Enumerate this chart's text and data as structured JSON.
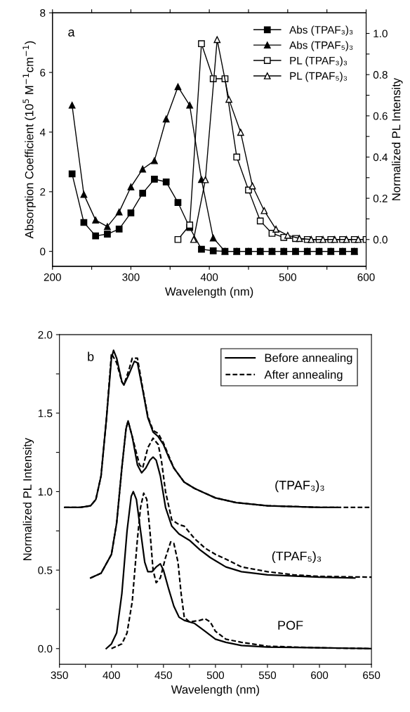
{
  "chart_data": [
    {
      "type": "line",
      "xlabel": "Wavelength (nm)",
      "ylabel": "Absorption Coefficient (10$^{5}$ M$^{−1}$cm$^{−1}$)",
      "y2label": "Normalized PL Intensity",
      "annotations": [
        "a"
      ],
      "xlim": [
        200,
        600
      ],
      "xticks": [
        200,
        {
          "value": 250,
          "label": null
        },
        300,
        {
          "value": 350,
          "label": null
        },
        400,
        {
          "value": 450,
          "label": null
        },
        500,
        {
          "value": 550,
          "label": null
        },
        600
      ],
      "ylim": [
        -0.5,
        8
      ],
      "yticks": [
        0,
        2,
        4,
        6,
        8
      ],
      "y2lim": [
        -0.13,
        1.1
      ],
      "y2ticks": [
        {
          "value": 0.0,
          "label": "0.0"
        },
        {
          "value": 0.1,
          "label": null
        },
        {
          "value": 0.2,
          "label": "0.2"
        },
        {
          "value": 0.3,
          "label": null
        },
        {
          "value": 0.4,
          "label": "0.4"
        },
        {
          "value": 0.5,
          "label": null
        },
        {
          "value": 0.6,
          "label": "0.6"
        },
        {
          "value": 0.7,
          "label": null
        },
        {
          "value": 0.8,
          "label": "0.8"
        },
        {
          "value": 0.9,
          "label": null
        },
        {
          "value": 1.0,
          "label": "1.0"
        }
      ],
      "legend": "top right",
      "grid": false,
      "line_style": "solid",
      "series": [
        {
          "name": "Abs (TPAF₃)₃",
          "color": "#000000",
          "marker": "square",
          "x": [
            225,
            240,
            255,
            270,
            285,
            300,
            315,
            330,
            345,
            360,
            375,
            390,
            405,
            420,
            435,
            450,
            465,
            480,
            495,
            510,
            525,
            540,
            555,
            570,
            585
          ],
          "values": [
            2.6,
            0.97,
            0.52,
            0.58,
            0.75,
            1.29,
            1.95,
            2.42,
            2.33,
            1.64,
            0.8,
            0.07,
            0.02,
            0,
            0,
            0,
            0,
            0,
            0,
            0,
            0,
            0,
            0,
            0,
            0
          ]
        },
        {
          "name": "Abs (TPAF₅)₃",
          "color": "#000000",
          "marker": "triangle",
          "x": [
            225,
            240,
            255,
            270,
            285,
            300,
            315,
            330,
            345,
            360,
            375,
            390,
            405,
            420,
            435,
            450,
            465,
            480,
            495,
            510,
            525,
            540,
            555,
            570,
            585
          ],
          "values": [
            4.9,
            1.91,
            1.05,
            0.83,
            1.32,
            2.16,
            2.76,
            3.04,
            4.44,
            5.52,
            4.9,
            2.41,
            0.45,
            0,
            0,
            0,
            0,
            0,
            0,
            0,
            0,
            0,
            0,
            0,
            0
          ]
        },
        {
          "name": "PL (TPAF₃)₃",
          "color": "#000000",
          "marker": "square",
          "axis": "y2",
          "x": [
            360,
            375,
            390,
            405,
            420,
            435,
            450,
            465,
            480,
            495,
            510,
            525,
            540,
            555,
            570,
            585,
            600
          ],
          "values": [
            0.0,
            0.07,
            0.95,
            0.78,
            0.78,
            0.4,
            0.24,
            0.09,
            0.03,
            0.01,
            0.005,
            0,
            0,
            0,
            0,
            0,
            0
          ]
        },
        {
          "name": "PL (TPAF₅)₃",
          "color": "#000000",
          "marker": "triangle",
          "axis": "y2",
          "x": [
            380,
            395,
            410,
            425,
            440,
            455,
            470,
            485,
            500,
            515,
            530,
            545,
            560,
            575,
            590
          ],
          "values": [
            0.0,
            0.29,
            0.97,
            0.68,
            0.52,
            0.26,
            0.14,
            0.05,
            0.02,
            0.005,
            0,
            0,
            0,
            0,
            0
          ]
        }
      ]
    },
    {
      "type": "line",
      "xlabel": "Wavelength (nm)",
      "ylabel": "Normalized PL Intensity",
      "annotations": [
        "b",
        "(TPAF₃)₃",
        "(TPAF₅)₃",
        "POF"
      ],
      "xlim": [
        350,
        650
      ],
      "xticks": [
        350,
        {
          "value": 375,
          "label": null
        },
        400,
        {
          "value": 425,
          "label": null
        },
        450,
        {
          "value": 475,
          "label": null
        },
        500,
        {
          "value": 525,
          "label": null
        },
        550,
        {
          "value": 575,
          "label": null
        },
        600,
        {
          "value": 625,
          "label": null
        },
        650
      ],
      "ylim": [
        -0.1,
        2.0
      ],
      "yticks": [
        {
          "value": 0.0,
          "label": "0.0"
        },
        {
          "value": 0.25,
          "label": null
        },
        {
          "value": 0.5,
          "label": "0.5"
        },
        {
          "value": 0.75,
          "label": null
        },
        {
          "value": 1.0,
          "label": "1.0"
        },
        {
          "value": 1.25,
          "label": null
        },
        {
          "value": 1.5,
          "label": "1.5"
        },
        {
          "value": 1.75,
          "label": null
        },
        {
          "value": 2.0,
          "label": "2.0"
        }
      ],
      "legend": "top right",
      "grid": false,
      "series": [
        {
          "name": "Before annealing",
          "color": "#000000",
          "line_style": "solid",
          "x": [
            355,
            370,
            380,
            385,
            390,
            395,
            400,
            402,
            405,
            410,
            412,
            417,
            422,
            425,
            430,
            435,
            440,
            445,
            450,
            455,
            460,
            470,
            480,
            490,
            500,
            520,
            550,
            600,
            617
          ],
          "values": [
            0.9,
            0.9,
            0.91,
            0.95,
            1.1,
            1.45,
            1.85,
            1.9,
            1.85,
            1.7,
            1.68,
            1.75,
            1.83,
            1.82,
            1.65,
            1.47,
            1.38,
            1.35,
            1.3,
            1.22,
            1.15,
            1.06,
            1.02,
            0.99,
            0.96,
            0.93,
            0.91,
            0.9,
            0.9
          ]
        },
        {
          "name": "After annealing",
          "color": "#000000",
          "line_style": "dashed",
          "x": [
            355,
            370,
            380,
            385,
            390,
            395,
            400,
            405,
            410,
            412,
            417,
            420,
            425,
            430,
            435,
            440,
            445,
            450,
            455,
            460,
            470,
            480,
            490,
            500,
            520,
            550,
            600,
            650
          ],
          "values": [
            0.9,
            0.9,
            0.91,
            0.95,
            1.1,
            1.45,
            1.88,
            1.82,
            1.7,
            1.68,
            1.78,
            1.85,
            1.85,
            1.66,
            1.48,
            1.39,
            1.37,
            1.31,
            1.23,
            1.15,
            1.06,
            1.02,
            0.99,
            0.96,
            0.93,
            0.91,
            0.9,
            0.9
          ]
        },
        {
          "color": "#000000",
          "line_style": "solid",
          "x": [
            380,
            390,
            400,
            405,
            410,
            414,
            416,
            420,
            425,
            429,
            433,
            437,
            440,
            443,
            447,
            452,
            458,
            465,
            475,
            485,
            495,
            500,
            510,
            525,
            550,
            600,
            634
          ],
          "values": [
            0.45,
            0.48,
            0.6,
            0.8,
            1.15,
            1.4,
            1.45,
            1.35,
            1.17,
            1.12,
            1.15,
            1.2,
            1.22,
            1.2,
            1.1,
            0.9,
            0.78,
            0.73,
            0.69,
            0.63,
            0.58,
            0.56,
            0.52,
            0.49,
            0.47,
            0.455,
            0.45
          ]
        },
        {
          "color": "#000000",
          "line_style": "dashed",
          "x": [
            380,
            390,
            400,
            405,
            410,
            414,
            416,
            420,
            427,
            430,
            435,
            440,
            445,
            448,
            452,
            458,
            465,
            470,
            480,
            490,
            500,
            510,
            525,
            550,
            575,
            600,
            650
          ],
          "values": [
            0.45,
            0.48,
            0.6,
            0.8,
            1.15,
            1.4,
            1.45,
            1.35,
            1.17,
            1.15,
            1.28,
            1.34,
            1.3,
            1.2,
            1.0,
            0.82,
            0.79,
            0.78,
            0.7,
            0.64,
            0.6,
            0.57,
            0.52,
            0.49,
            0.47,
            0.46,
            0.455
          ]
        },
        {
          "color": "#000000",
          "line_style": "solid",
          "x": [
            395,
            400,
            405,
            410,
            415,
            419,
            421,
            424,
            428,
            432,
            435,
            439,
            443,
            447,
            450,
            455,
            460,
            465,
            470,
            480,
            490,
            500,
            510,
            525,
            550,
            600,
            650
          ],
          "values": [
            0.0,
            0.03,
            0.1,
            0.35,
            0.75,
            0.97,
            1.0,
            0.95,
            0.75,
            0.55,
            0.49,
            0.49,
            0.52,
            0.54,
            0.5,
            0.38,
            0.27,
            0.2,
            0.18,
            0.16,
            0.11,
            0.06,
            0.04,
            0.02,
            0.01,
            0.005,
            0.0
          ]
        },
        {
          "color": "#000000",
          "line_style": "dashed",
          "x": [
            400,
            410,
            415,
            420,
            425,
            428,
            431,
            434,
            437,
            440,
            443,
            447,
            452,
            457,
            460,
            464,
            467,
            470,
            475,
            485,
            490,
            495,
            500,
            510,
            525,
            550,
            600,
            650
          ],
          "values": [
            0.0,
            0.03,
            0.1,
            0.3,
            0.7,
            0.9,
            0.99,
            0.95,
            0.75,
            0.5,
            0.42,
            0.45,
            0.58,
            0.68,
            0.67,
            0.55,
            0.35,
            0.2,
            0.17,
            0.18,
            0.19,
            0.17,
            0.11,
            0.06,
            0.04,
            0.015,
            0.005,
            0.0
          ]
        }
      ]
    }
  ]
}
